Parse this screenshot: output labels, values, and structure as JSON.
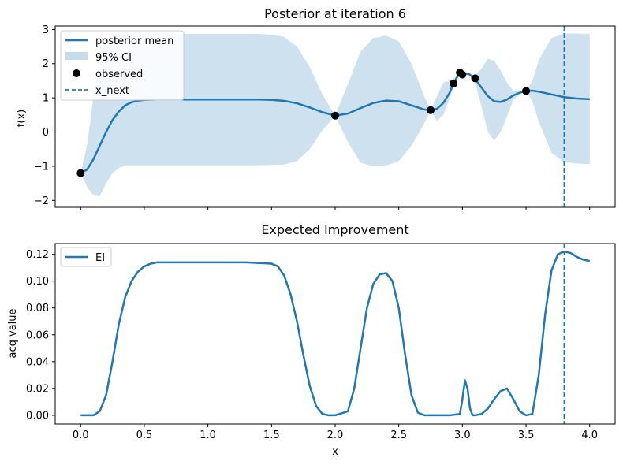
{
  "chart_data": [
    {
      "type": "line",
      "title": "Posterior at iteration 6",
      "xlabel": "",
      "ylabel": "f(x)",
      "xlim": [
        -0.2,
        4.2
      ],
      "ylim": [
        -2.2,
        3.1
      ],
      "xticks": [
        0.0,
        0.5,
        1.0,
        1.5,
        2.0,
        2.5,
        3.0,
        3.5,
        4.0
      ],
      "xtick_labels_shown": false,
      "yticks": [
        -2,
        -1,
        0,
        1,
        2,
        3
      ],
      "ytick_labels": [
        "−2",
        "−1",
        "0",
        "1",
        "2",
        "3"
      ],
      "legend": {
        "placement": "top-left",
        "entries": [
          "posterior mean",
          "95% CI",
          "observed",
          "x_next"
        ]
      },
      "colors": {
        "mean": "#1f77b4",
        "ci": "#c6dcec",
        "observed": "#000000",
        "x_next": "#1f77b4"
      },
      "series": [
        {
          "name": "posterior mean",
          "x": [
            0.0,
            0.05,
            0.1,
            0.15,
            0.2,
            0.25,
            0.3,
            0.35,
            0.4,
            0.45,
            0.5,
            0.6,
            0.8,
            1.0,
            1.2,
            1.4,
            1.5,
            1.6,
            1.7,
            1.8,
            1.9,
            2.0,
            2.1,
            2.2,
            2.3,
            2.4,
            2.5,
            2.6,
            2.7,
            2.75,
            2.8,
            2.85,
            2.9,
            2.93,
            2.96,
            3.0,
            3.05,
            3.1,
            3.15,
            3.2,
            3.25,
            3.3,
            3.35,
            3.4,
            3.45,
            3.5,
            3.55,
            3.6,
            3.7,
            3.8,
            3.9,
            4.0
          ],
          "y": [
            -1.2,
            -1.1,
            -0.8,
            -0.4,
            0.0,
            0.35,
            0.6,
            0.78,
            0.87,
            0.92,
            0.94,
            0.95,
            0.95,
            0.95,
            0.95,
            0.95,
            0.94,
            0.91,
            0.84,
            0.72,
            0.58,
            0.48,
            0.54,
            0.7,
            0.85,
            0.92,
            0.9,
            0.78,
            0.66,
            0.64,
            0.68,
            0.85,
            1.15,
            1.42,
            1.62,
            1.72,
            1.7,
            1.55,
            1.3,
            1.05,
            0.9,
            0.88,
            0.95,
            1.07,
            1.15,
            1.2,
            1.21,
            1.18,
            1.1,
            1.02,
            0.98,
            0.96
          ]
        }
      ],
      "ci": {
        "name": "95% CI",
        "x": [
          0.0,
          0.05,
          0.1,
          0.15,
          0.2,
          0.25,
          0.3,
          0.35,
          0.4,
          0.45,
          0.5,
          0.6,
          0.8,
          1.0,
          1.2,
          1.4,
          1.5,
          1.6,
          1.7,
          1.8,
          1.9,
          2.0,
          2.1,
          2.2,
          2.3,
          2.4,
          2.5,
          2.6,
          2.7,
          2.75,
          2.8,
          2.85,
          2.9,
          2.93,
          2.96,
          3.0,
          3.05,
          3.1,
          3.15,
          3.2,
          3.25,
          3.3,
          3.35,
          3.4,
          3.45,
          3.5,
          3.55,
          3.6,
          3.7,
          3.8,
          3.9,
          4.0
        ],
        "upper": [
          -1.2,
          -0.4,
          1.0,
          2.2,
          2.7,
          2.84,
          2.86,
          2.87,
          2.87,
          2.87,
          2.87,
          2.87,
          2.87,
          2.87,
          2.87,
          2.87,
          2.85,
          2.78,
          2.5,
          1.9,
          1.1,
          0.48,
          1.4,
          2.35,
          2.75,
          2.82,
          2.65,
          2.0,
          1.05,
          0.64,
          1.05,
          1.45,
          1.5,
          1.55,
          1.67,
          1.74,
          1.73,
          1.65,
          1.85,
          2.15,
          2.08,
          1.8,
          1.45,
          1.2,
          1.22,
          1.2,
          1.5,
          2.1,
          2.75,
          2.88,
          2.88,
          2.87
        ],
        "lower": [
          -1.2,
          -1.6,
          -1.85,
          -1.88,
          -1.5,
          -1.2,
          -1.05,
          -0.98,
          -0.97,
          -0.97,
          -0.97,
          -0.97,
          -0.97,
          -0.97,
          -0.97,
          -0.97,
          -0.96,
          -0.95,
          -0.85,
          -0.5,
          0.05,
          0.48,
          -0.3,
          -0.9,
          -1.0,
          -0.98,
          -0.85,
          -0.4,
          0.25,
          0.64,
          0.33,
          0.5,
          1.0,
          1.3,
          1.55,
          1.7,
          1.67,
          1.45,
          0.75,
          0.0,
          -0.25,
          0.0,
          0.45,
          0.95,
          1.1,
          1.2,
          0.9,
          0.3,
          -0.6,
          -0.88,
          -0.92,
          -0.94
        ]
      },
      "observed": {
        "name": "observed",
        "x": [
          0.0,
          2.0,
          2.75,
          2.93,
          2.98,
          3.0,
          3.1,
          3.5
        ],
        "y": [
          -1.2,
          0.48,
          0.64,
          1.42,
          1.74,
          1.68,
          1.57,
          1.2
        ]
      },
      "x_next": {
        "name": "x_next",
        "x": 3.8
      }
    },
    {
      "type": "line",
      "title": "Expected Improvement",
      "xlabel": "x",
      "ylabel": "acq value",
      "xlim": [
        -0.2,
        4.2
      ],
      "ylim": [
        -0.0065,
        0.128
      ],
      "xticks": [
        0.0,
        0.5,
        1.0,
        1.5,
        2.0,
        2.5,
        3.0,
        3.5,
        4.0
      ],
      "xtick_labels": [
        "0.0",
        "0.5",
        "1.0",
        "1.5",
        "2.0",
        "2.5",
        "3.0",
        "3.5",
        "4.0"
      ],
      "yticks": [
        0.0,
        0.02,
        0.04,
        0.06,
        0.08,
        0.1,
        0.12
      ],
      "ytick_labels": [
        "0.00",
        "0.02",
        "0.04",
        "0.06",
        "0.08",
        "0.10",
        "0.12"
      ],
      "legend": {
        "placement": "top-left",
        "entries": [
          "EI"
        ]
      },
      "colors": {
        "ei": "#1f77b4",
        "x_next": "#1f77b4"
      },
      "series": [
        {
          "name": "EI",
          "x": [
            0.0,
            0.1,
            0.15,
            0.2,
            0.25,
            0.3,
            0.35,
            0.4,
            0.45,
            0.5,
            0.55,
            0.6,
            0.7,
            1.0,
            1.3,
            1.5,
            1.55,
            1.6,
            1.65,
            1.7,
            1.75,
            1.8,
            1.85,
            1.9,
            1.95,
            2.0,
            2.1,
            2.15,
            2.2,
            2.25,
            2.3,
            2.35,
            2.4,
            2.45,
            2.5,
            2.55,
            2.6,
            2.65,
            2.7,
            2.8,
            2.9,
            2.98,
            3.0,
            3.02,
            3.04,
            3.06,
            3.08,
            3.1,
            3.15,
            3.2,
            3.25,
            3.3,
            3.35,
            3.4,
            3.45,
            3.5,
            3.55,
            3.6,
            3.65,
            3.7,
            3.75,
            3.8,
            3.85,
            3.9,
            3.95,
            4.0
          ],
          "y": [
            0.0,
            0.0,
            0.003,
            0.015,
            0.04,
            0.068,
            0.088,
            0.1,
            0.107,
            0.111,
            0.113,
            0.114,
            0.114,
            0.114,
            0.114,
            0.113,
            0.111,
            0.104,
            0.09,
            0.07,
            0.045,
            0.022,
            0.007,
            0.001,
            0.0,
            0.0,
            0.003,
            0.02,
            0.05,
            0.08,
            0.098,
            0.105,
            0.106,
            0.1,
            0.08,
            0.045,
            0.015,
            0.002,
            0.0,
            0.0,
            0.0,
            0.001,
            0.012,
            0.026,
            0.02,
            0.005,
            0.0,
            0.0,
            0.001,
            0.005,
            0.012,
            0.018,
            0.02,
            0.012,
            0.003,
            0.0,
            0.001,
            0.03,
            0.075,
            0.108,
            0.12,
            0.122,
            0.121,
            0.118,
            0.116,
            0.115
          ]
        }
      ],
      "x_next": {
        "name": "x_next",
        "x": 3.8
      }
    }
  ]
}
